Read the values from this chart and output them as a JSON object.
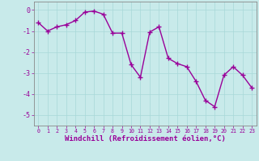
{
  "x": [
    0,
    1,
    2,
    3,
    4,
    5,
    6,
    7,
    8,
    9,
    10,
    11,
    12,
    13,
    14,
    15,
    16,
    17,
    18,
    19,
    20,
    21,
    22,
    23
  ],
  "y": [
    -0.6,
    -1.0,
    -0.8,
    -0.7,
    -0.5,
    -0.1,
    -0.05,
    -0.2,
    -1.1,
    -1.1,
    -2.6,
    -3.2,
    -1.05,
    -0.8,
    -2.3,
    -2.55,
    -2.7,
    -3.4,
    -4.3,
    -4.6,
    -3.1,
    -2.7,
    -3.1,
    -3.7
  ],
  "line_color": "#990099",
  "marker": "+",
  "marker_size": 4,
  "linewidth": 1.0,
  "xlabel": "Windchill (Refroidissement éolien,°C)",
  "xlabel_fontsize": 6.5,
  "ylim": [
    -5.5,
    0.4
  ],
  "xlim": [
    -0.5,
    23.5
  ],
  "yticks": [
    0,
    -1,
    -2,
    -3,
    -4,
    -5
  ],
  "xticks": [
    0,
    1,
    2,
    3,
    4,
    5,
    6,
    7,
    8,
    9,
    10,
    11,
    12,
    13,
    14,
    15,
    16,
    17,
    18,
    19,
    20,
    21,
    22,
    23
  ],
  "xtick_fontsize": 4.8,
  "ytick_fontsize": 6.0,
  "bg_color": "#c8eaea",
  "grid_color": "#a8d8d8",
  "grid_linewidth": 0.5,
  "spine_color": "#888888",
  "title": ""
}
